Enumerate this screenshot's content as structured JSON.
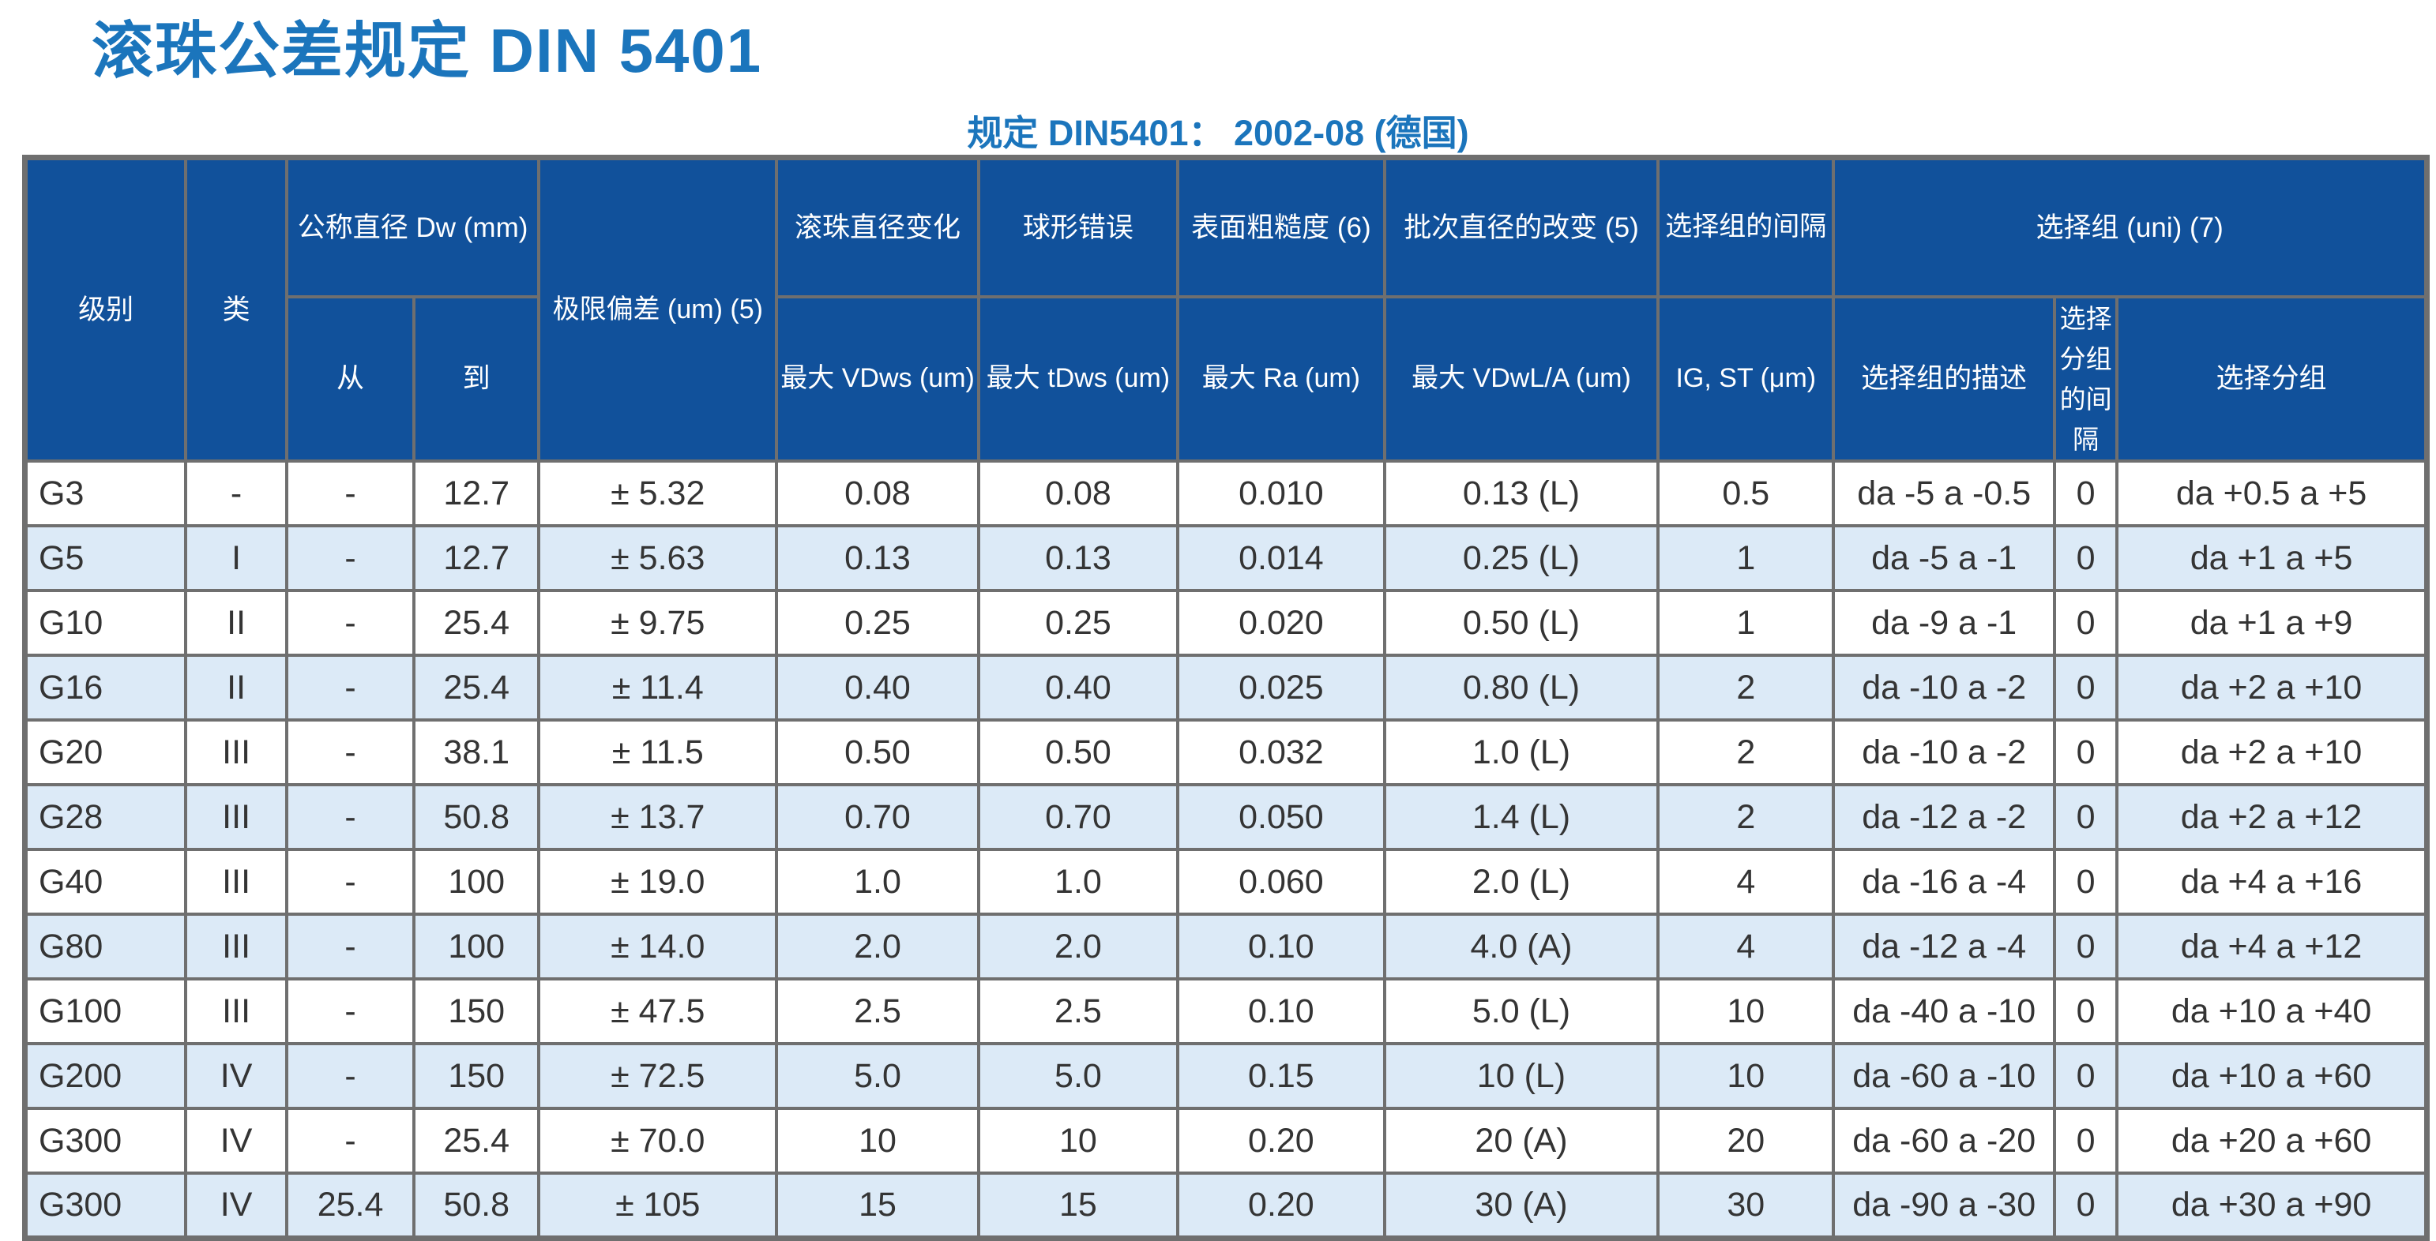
{
  "page": {
    "title": "滚珠公差规定 DIN 5401",
    "subtitle": "规定  DIN5401：  2002-08 (德国)"
  },
  "colors": {
    "title_blue": "#1B75BC",
    "header_bg": "#11519B",
    "row_alt_bg": "#DCEAF7",
    "border_gray": "#6F6F6F",
    "text_dark": "#343434"
  },
  "table": {
    "header": {
      "level": "级别",
      "class": "类",
      "nominal_diameter": "公称直径 Dw (mm)",
      "from": "从",
      "to": "到",
      "limit_deviation": "极限偏差 (um) (5)",
      "ball_diameter_variation": "滚珠直径变化",
      "ball_diameter_variation_max": "最大 VDws (um)",
      "sphericity_error": "球形错误",
      "sphericity_error_max": "最大 tDws (um)",
      "surface_roughness": "表面粗糙度 (6)",
      "surface_roughness_max": "最大 Ra (um)",
      "lot_diameter_variation": "批次直径的改变 (5)",
      "lot_diameter_variation_max": "最大 VDwL/A (um)",
      "selection_group_gap": "选择组的间隔",
      "selection_group_gap_sub": "IG, ST (μm)",
      "selection_group": "选择组 (uni) (7)",
      "selection_group_desc": "选择组的描述",
      "selection_subgroup_gap": "选择分组的间隔",
      "selection_subgroup": "选择分组"
    },
    "rows": [
      [
        "G3",
        "-",
        "-",
        "12.7",
        "± 5.32",
        "0.08",
        "0.08",
        "0.010",
        "0.13 (L)",
        "0.5",
        "da -5 a -0.5",
        "0",
        "da +0.5 a +5"
      ],
      [
        "G5",
        "I",
        "-",
        "12.7",
        "± 5.63",
        "0.13",
        "0.13",
        "0.014",
        "0.25 (L)",
        "1",
        "da -5 a -1",
        "0",
        "da +1 a +5"
      ],
      [
        "G10",
        "II",
        "-",
        "25.4",
        "± 9.75",
        "0.25",
        "0.25",
        "0.020",
        "0.50 (L)",
        "1",
        "da -9 a -1",
        "0",
        "da +1 a +9"
      ],
      [
        "G16",
        "II",
        "-",
        "25.4",
        "± 11.4",
        "0.40",
        "0.40",
        "0.025",
        "0.80 (L)",
        "2",
        "da -10 a -2",
        "0",
        "da +2 a +10"
      ],
      [
        "G20",
        "III",
        "-",
        "38.1",
        "± 11.5",
        "0.50",
        "0.50",
        "0.032",
        "1.0 (L)",
        "2",
        "da -10 a -2",
        "0",
        "da +2 a +10"
      ],
      [
        "G28",
        "III",
        "-",
        "50.8",
        "± 13.7",
        "0.70",
        "0.70",
        "0.050",
        "1.4 (L)",
        "2",
        "da -12 a -2",
        "0",
        "da +2 a +12"
      ],
      [
        "G40",
        "III",
        "-",
        "100",
        "± 19.0",
        "1.0",
        "1.0",
        "0.060",
        "2.0 (L)",
        "4",
        "da -16 a -4",
        "0",
        "da +4 a +16"
      ],
      [
        "G80",
        "III",
        "-",
        "100",
        "± 14.0",
        "2.0",
        "2.0",
        "0.10",
        "4.0 (A)",
        "4",
        "da -12 a -4",
        "0",
        "da +4 a +12"
      ],
      [
        "G100",
        "III",
        "-",
        "150",
        "± 47.5",
        "2.5",
        "2.5",
        "0.10",
        "5.0 (L)",
        "10",
        "da -40 a -10",
        "0",
        "da +10 a +40"
      ],
      [
        "G200",
        "IV",
        "-",
        "150",
        "± 72.5",
        "5.0",
        "5.0",
        "0.15",
        "10 (L)",
        "10",
        "da -60 a -10",
        "0",
        "da +10 a +60"
      ],
      [
        "G300",
        "IV",
        "-",
        "25.4",
        "± 70.0",
        "10",
        "10",
        "0.20",
        "20 (A)",
        "20",
        "da -60 a -20",
        "0",
        "da +20 a +60"
      ],
      [
        "G300",
        "IV",
        "25.4",
        "50.8",
        "± 105",
        "15",
        "15",
        "0.20",
        "30 (A)",
        "30",
        "da -90 a -30",
        "0",
        "da +30 a +90"
      ]
    ]
  }
}
